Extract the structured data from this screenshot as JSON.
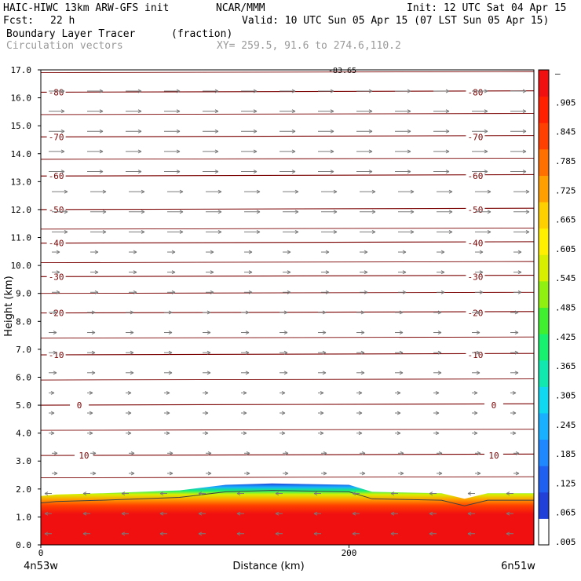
{
  "header": {
    "model": "HAIC-HIWC 13km ARW-GFS init",
    "org": "NCAR/MMM",
    "init": "Init: 12 UTC Sat 04 Apr 15",
    "fcst_label": "Fcst:",
    "fcst_value": "22 h",
    "valid": "Valid: 10 UTC Sun 05 Apr 15 (07 LST Sun 05 Apr 15)",
    "field": "Boundary Layer Tracer",
    "field_units": "(fraction)",
    "overlay": "Circulation vectors",
    "xy": "XY= 259.5, 91.6 to 274.6,110.2"
  },
  "chart_data": {
    "type": "heatmap",
    "title": "Boundary Layer Tracer (fraction)",
    "xlabel": "Distance (km)",
    "ylabel": "Height (km)",
    "xlim": [
      0,
      320
    ],
    "ylim": [
      0,
      17
    ],
    "x_ticks": [
      0,
      200
    ],
    "x_tick_labels": [
      "0",
      "200"
    ],
    "x_end_labels": [
      "4n53w",
      "6n51w"
    ],
    "y_ticks": [
      0,
      1,
      2,
      3,
      4,
      5,
      6,
      7,
      8,
      9,
      10,
      11,
      12,
      13,
      14,
      15,
      16,
      17
    ],
    "y_tick_labels": [
      "0.0",
      "1.0",
      "2.0",
      "3.0",
      "4.0",
      "5.0",
      "6.0",
      "7.0",
      "8.0",
      "9.0",
      "10.0",
      "11.0",
      "12.0",
      "13.0",
      "14.0",
      "15.0",
      "16.0",
      "17.0"
    ],
    "colorbar": {
      "labels": [
        "–",
        ".905",
        ".845",
        ".785",
        ".725",
        ".665",
        ".605",
        ".545",
        ".485",
        ".425",
        ".365",
        ".305",
        ".245",
        ".185",
        ".125",
        ".065",
        ".005"
      ],
      "colors": [
        "#ffffff",
        "#2040d8",
        "#2060f0",
        "#2088ff",
        "#18b0ff",
        "#10d8f0",
        "#10e8b0",
        "#18f070",
        "#40f030",
        "#90f010",
        "#d8f000",
        "#fff000",
        "#ffd000",
        "#ffa000",
        "#ff7000",
        "#ff4000",
        "#ff2000",
        "#f01010"
      ]
    },
    "temperature_contours": {
      "levels": [
        -80,
        -70,
        -60,
        -50,
        -40,
        -30,
        -20,
        -10,
        0,
        10
      ],
      "labels": [
        "-80",
        "-70",
        "-60",
        "-50",
        "-40",
        "-30",
        "-20",
        "-10",
        "0",
        "10"
      ],
      "heights_km": [
        16.2,
        14.6,
        13.2,
        12.0,
        10.8,
        9.6,
        8.3,
        6.8,
        5.0,
        3.2
      ],
      "top_label": "-83.65",
      "line_color": "#7a0000"
    },
    "boundary_layer": {
      "top_km_x": [
        0,
        10,
        40,
        90,
        120,
        150,
        200,
        215,
        260,
        275,
        290,
        320
      ],
      "top_km": [
        1.75,
        1.8,
        1.85,
        1.95,
        2.15,
        2.2,
        2.15,
        1.9,
        1.85,
        1.65,
        1.85,
        1.85
      ]
    },
    "grid": false,
    "legend": "right colorbar"
  }
}
